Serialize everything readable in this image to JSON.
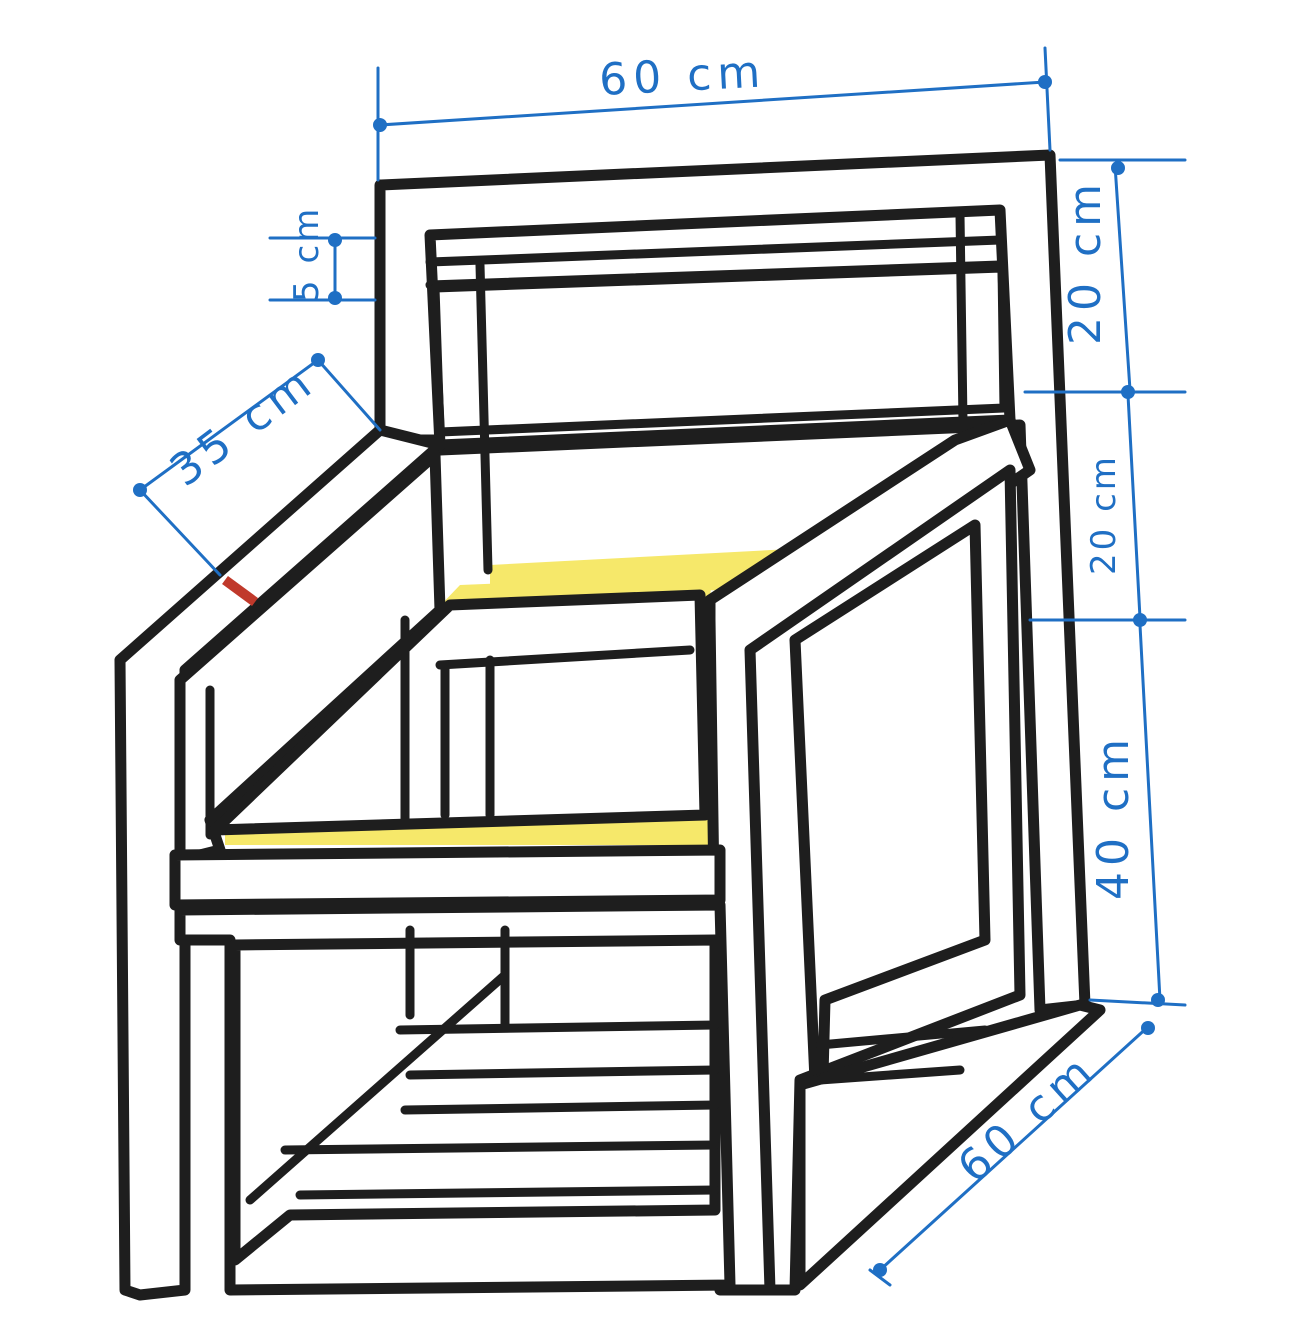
{
  "drawing": {
    "subject": "chair",
    "labels": {
      "top_width": "60 cm",
      "backrest_height": "20 cm",
      "armrest_height": "20 cm",
      "seat_height": "40 cm",
      "depth": "60 cm",
      "armrest_length": "35 cm",
      "top_rail": "5 cm"
    }
  },
  "colors": {
    "ink": "#1e1e1e",
    "dimension_ink": "#1f6fc4",
    "cushion_fill": "#f6e86a",
    "dot_blue": "#1c6fa8",
    "dot_green": "#2e7d3c",
    "marker": "#c0392b"
  },
  "icons": {
    "arrow_head": "dimension-arrow-icon"
  }
}
